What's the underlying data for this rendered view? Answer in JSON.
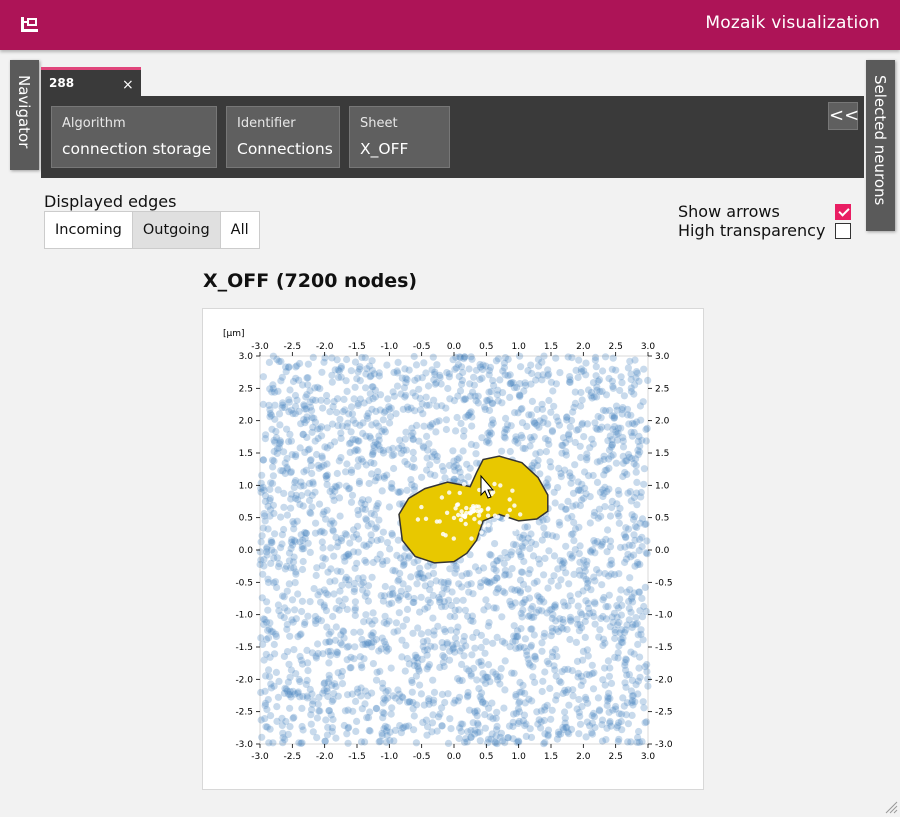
{
  "header": {
    "title": "Mozaik visualization",
    "icon": "tree-structure-icon",
    "background": "#ad1457"
  },
  "side_tabs": {
    "left": "Navigator",
    "right": "Selected neurons"
  },
  "tab": {
    "label": "288",
    "close": "×",
    "accent": "#e0457b"
  },
  "info": {
    "items": [
      {
        "key": "Algorithm",
        "value": "connection storage"
      },
      {
        "key": "Identifier",
        "value": "Connections"
      },
      {
        "key": "Sheet",
        "value": "X_OFF"
      }
    ],
    "collapse": "<<"
  },
  "edges": {
    "label": "Displayed edges",
    "options": [
      "Incoming",
      "Outgoing",
      "All"
    ],
    "selected": "Outgoing"
  },
  "options": {
    "show_arrows": {
      "label": "Show arrows",
      "checked": true
    },
    "high_transparency": {
      "label": "High transparency",
      "checked": false
    },
    "accent": "#e91e63"
  },
  "chart_data": {
    "type": "scatter",
    "title": "X_OFF (7200 nodes)",
    "unit_label": "[μm]",
    "node_count": 7200,
    "xlim": [
      -3.0,
      3.0
    ],
    "ylim": [
      -3.0,
      3.0
    ],
    "xticks": [
      "-3.0",
      "-2.5",
      "-2.0",
      "-1.5",
      "-1.0",
      "-0.5",
      "0.0",
      "0.5",
      "1.0",
      "1.5",
      "2.0",
      "2.5",
      "3.0"
    ],
    "yticks": [
      "3.0",
      "2.5",
      "2.0",
      "1.5",
      "1.0",
      "0.5",
      "0.0",
      "-0.5",
      "-1.0",
      "-1.5",
      "-2.0",
      "-2.5",
      "-3.0"
    ],
    "point_color": "#4a86c0",
    "selection_color": "#e8c800",
    "selection_outline": [
      [
        -0.85,
        0.55
      ],
      [
        -0.7,
        0.8
      ],
      [
        -0.45,
        0.95
      ],
      [
        -0.1,
        1.05
      ],
      [
        0.25,
        0.98
      ],
      [
        0.35,
        1.2
      ],
      [
        0.45,
        1.4
      ],
      [
        0.7,
        1.45
      ],
      [
        1.05,
        1.35
      ],
      [
        1.3,
        1.12
      ],
      [
        1.45,
        0.85
      ],
      [
        1.45,
        0.6
      ],
      [
        1.28,
        0.48
      ],
      [
        1.0,
        0.45
      ],
      [
        0.7,
        0.55
      ],
      [
        0.45,
        0.45
      ],
      [
        0.35,
        0.15
      ],
      [
        0.2,
        -0.05
      ],
      [
        0.0,
        -0.18
      ],
      [
        -0.3,
        -0.2
      ],
      [
        -0.6,
        -0.1
      ],
      [
        -0.8,
        0.15
      ],
      [
        -0.85,
        0.55
      ]
    ],
    "grid": false
  }
}
